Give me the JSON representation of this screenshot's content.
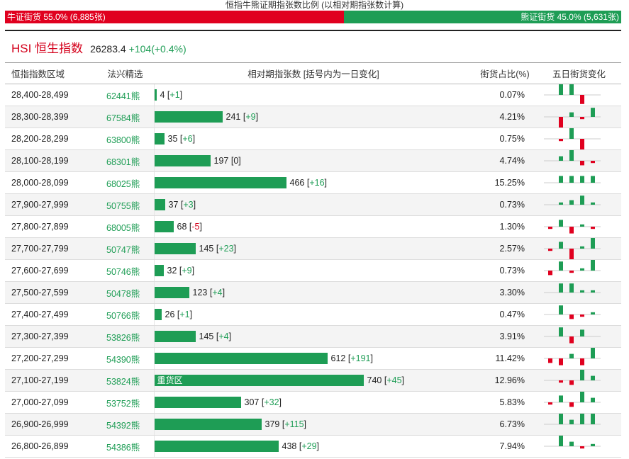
{
  "page": {
    "title": "恒指牛熊证期指张数比例 (以相对期指张数计算)",
    "bull_label": "牛证街货 55.0% (6,885张)",
    "bear_label": "熊证街货 45.0% (5,631张)",
    "bull_share": 55.0,
    "bull_color": "#e0001f",
    "bear_color": "#1e9d55"
  },
  "index": {
    "name": "HSI 恒生指数",
    "price": "26283.4",
    "change": "+104(+0.4%)"
  },
  "table": {
    "headers": [
      "恒指指数区域",
      "法兴精选",
      "相对期指张数 [括号内为一日变化]",
      "街货占比(%)",
      "五日街货变化"
    ],
    "bar_max": 740,
    "rows": [
      {
        "range": "28,400-28,499",
        "code": "62441熊",
        "count": 4,
        "count_text": "4",
        "delta": "+1",
        "bar_text": "",
        "pct": "0.07%",
        "spark": [
          0,
          5,
          5,
          -4,
          0
        ]
      },
      {
        "range": "28,300-28,399",
        "code": "67584熊",
        "count": 241,
        "count_text": "241",
        "delta": "+9",
        "bar_text": "",
        "pct": "4.21%",
        "spark": [
          0,
          -5,
          2,
          -1,
          4
        ]
      },
      {
        "range": "28,200-28,299",
        "code": "63800熊",
        "count": 35,
        "count_text": "35",
        "delta": "+6",
        "bar_text": "",
        "pct": "0.75%",
        "spark": [
          0,
          -1,
          5,
          -5,
          0
        ]
      },
      {
        "range": "28,100-28,199",
        "code": "68301熊",
        "count": 197,
        "count_text": "197",
        "delta": "0",
        "bar_text": "",
        "pct": "4.74%",
        "spark": [
          0,
          2,
          5,
          -2,
          -1
        ]
      },
      {
        "range": "28,000-28,099",
        "code": "68025熊",
        "count": 466,
        "count_text": "466",
        "delta": "+16",
        "bar_text": "",
        "pct": "15.25%",
        "spark": [
          0,
          3,
          3,
          3,
          3
        ]
      },
      {
        "range": "27,900-27,999",
        "code": "50755熊",
        "count": 37,
        "count_text": "37",
        "delta": "+3",
        "bar_text": "",
        "pct": "0.73%",
        "spark": [
          0,
          1,
          2,
          4,
          1
        ]
      },
      {
        "range": "27,800-27,899",
        "code": "68005熊",
        "count": 68,
        "count_text": "68",
        "delta": "-5",
        "bar_text": "",
        "pct": "1.30%",
        "spark": [
          -1,
          3,
          -3,
          1,
          -1
        ]
      },
      {
        "range": "27,700-27,799",
        "code": "50747熊",
        "count": 145,
        "count_text": "145",
        "delta": "+23",
        "bar_text": "",
        "pct": "2.57%",
        "spark": [
          -1,
          3,
          -5,
          1,
          5
        ]
      },
      {
        "range": "27,600-27,699",
        "code": "50746熊",
        "count": 32,
        "count_text": "32",
        "delta": "+9",
        "bar_text": "",
        "pct": "0.73%",
        "spark": [
          -2,
          4,
          -1,
          1,
          5
        ]
      },
      {
        "range": "27,500-27,599",
        "code": "50478熊",
        "count": 123,
        "count_text": "123",
        "delta": "+4",
        "bar_text": "",
        "pct": "3.30%",
        "spark": [
          0,
          4,
          4,
          1,
          1
        ]
      },
      {
        "range": "27,400-27,499",
        "code": "50766熊",
        "count": 26,
        "count_text": "26",
        "delta": "+1",
        "bar_text": "",
        "pct": "0.47%",
        "spark": [
          0,
          4,
          -2,
          -1,
          1
        ]
      },
      {
        "range": "27,300-27,399",
        "code": "53826熊",
        "count": 145,
        "count_text": "145",
        "delta": "+4",
        "bar_text": "",
        "pct": "3.91%",
        "spark": [
          0,
          4,
          -3,
          3,
          0
        ]
      },
      {
        "range": "27,200-27,299",
        "code": "54390熊",
        "count": 612,
        "count_text": "612",
        "delta": "+191",
        "bar_text": "",
        "pct": "11.42%",
        "spark": [
          -2,
          -3,
          2,
          -3,
          5
        ]
      },
      {
        "range": "27,100-27,199",
        "code": "53824熊",
        "count": 740,
        "count_text": "740",
        "delta": "+45",
        "bar_text": "重货区",
        "pct": "12.96%",
        "spark": [
          0,
          -1,
          -2,
          5,
          2
        ]
      },
      {
        "range": "27,000-27,099",
        "code": "53752熊",
        "count": 307,
        "count_text": "307",
        "delta": "+32",
        "bar_text": "",
        "pct": "5.83%",
        "spark": [
          -1,
          3,
          -2,
          5,
          2
        ]
      },
      {
        "range": "26,900-26,999",
        "code": "54392熊",
        "count": 379,
        "count_text": "379",
        "delta": "+115",
        "bar_text": "",
        "pct": "6.73%",
        "spark": [
          0,
          5,
          2,
          5,
          5
        ]
      },
      {
        "range": "26,800-26,899",
        "code": "54386熊",
        "count": 438,
        "count_text": "438",
        "delta": "+29",
        "bar_text": "",
        "pct": "7.94%",
        "spark": [
          0,
          5,
          2,
          -1,
          1
        ]
      }
    ]
  }
}
